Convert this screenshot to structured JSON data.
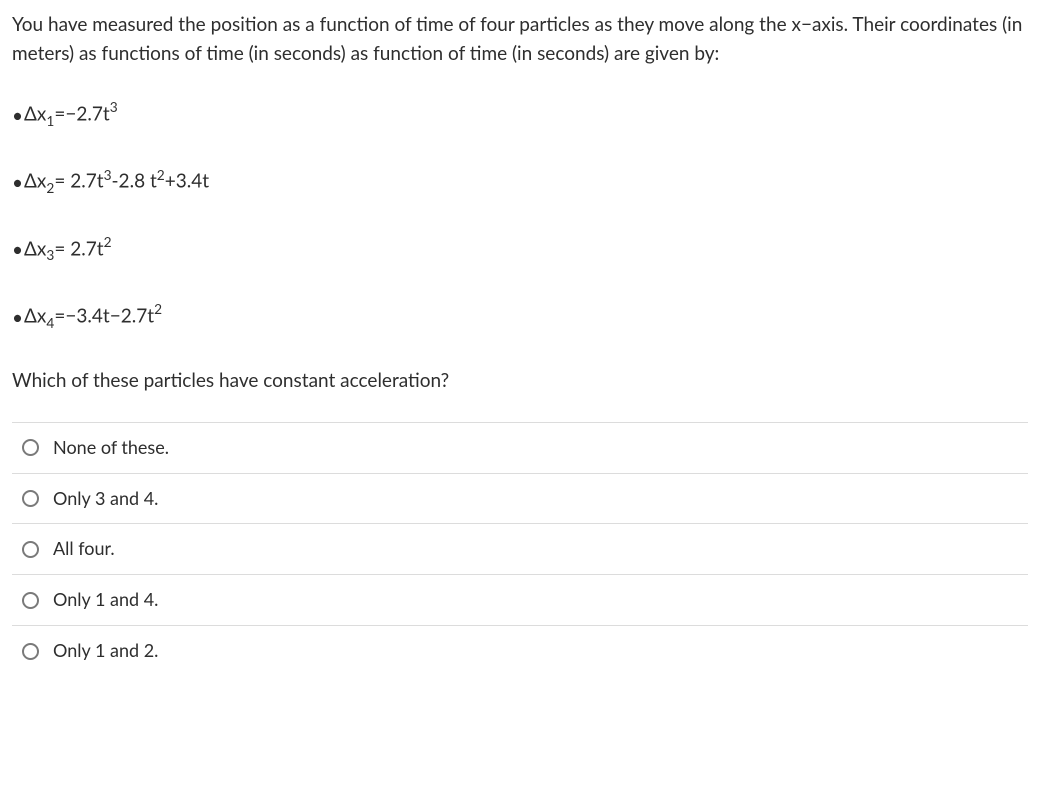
{
  "intro": "You have measured the position as a function of time of four particles as they move along the x−axis. Their coordinates (in meters) as functions of time (in seconds) as function of time (in seconds) are given by:",
  "equations": {
    "eq1": {
      "label": "Δx",
      "sub": "1",
      "rhs_a": "=−2.7t",
      "sup_a": "3",
      "rhs_b": ""
    },
    "eq2": {
      "label": "Δx",
      "sub": "2",
      "rhs_a": "= 2.7t",
      "sup_a": "3",
      "rhs_b": "-2.8 t",
      "sup_b": "2",
      "rhs_c": "+3.4t"
    },
    "eq3": {
      "label": "Δx",
      "sub": "3",
      "rhs_a": "= 2.7t",
      "sup_a": "2",
      "rhs_b": ""
    },
    "eq4": {
      "label": "Δx",
      "sub": "4",
      "rhs_a": "=−3.4t−2.7t",
      "sup_a": "2",
      "rhs_b": ""
    }
  },
  "question": "Which of these particles have constant acceleration?",
  "options": [
    "None of these.",
    "Only 3 and 4.",
    "All four.",
    "Only 1 and 4.",
    "Only 1 and 2."
  ]
}
